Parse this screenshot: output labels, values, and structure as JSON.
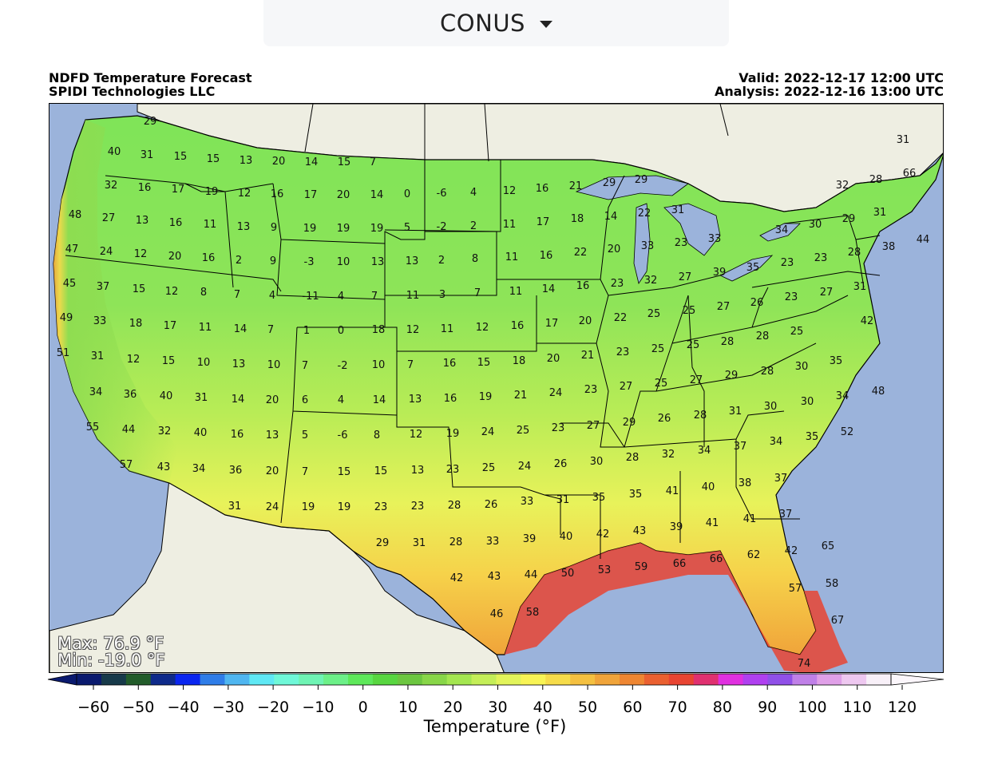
{
  "region_selector": {
    "label": "CONUS",
    "caret_icon": "caret-down-icon"
  },
  "header": {
    "title_line1": "NDFD Temperature Forecast",
    "title_line2": "SPIDI Technologies LLC",
    "valid": "Valid: 2022-12-17 12:00 UTC",
    "analysis": "Analysis: 2022-12-16 13:00 UTC"
  },
  "stats": {
    "max": "Max: 76.9 °F",
    "min": "Min: -19.0 °F"
  },
  "colorbar": {
    "label": "Temperature (°F)",
    "ticks": [
      "−60",
      "−50",
      "−40",
      "−30",
      "−20",
      "−10",
      "0",
      "10",
      "20",
      "30",
      "40",
      "50",
      "60",
      "70",
      "80",
      "90",
      "100",
      "110",
      "120"
    ],
    "colors": [
      "#0a1a6e",
      "#173a4a",
      "#225c2a",
      "#0e2a8a",
      "#0a26f0",
      "#2f7de8",
      "#4fb6f0",
      "#5fe8f4",
      "#6ff8d8",
      "#6ff4b4",
      "#6cf088",
      "#5ee85a",
      "#58d640",
      "#6cc640",
      "#88d648",
      "#a4e650",
      "#c4ee58",
      "#e2f45a",
      "#f8f455",
      "#f6dc4a",
      "#f4c040",
      "#f0a43a",
      "#ee8632",
      "#ea6030",
      "#e84432",
      "#e03070",
      "#e030e0",
      "#b040f0",
      "#9050e8",
      "#c080e8",
      "#e0a0e8",
      "#eec8f0",
      "#f8f0f8"
    ]
  },
  "map_labels": [
    [
      "29",
      187,
      150
    ],
    [
      "40",
      142,
      188
    ],
    [
      "31",
      183,
      192
    ],
    [
      "15",
      225,
      194
    ],
    [
      "15",
      266,
      197
    ],
    [
      "13",
      307,
      199
    ],
    [
      "20",
      348,
      200
    ],
    [
      "14",
      389,
      201
    ],
    [
      "15",
      430,
      201
    ],
    [
      "7",
      466,
      201
    ],
    [
      "32",
      138,
      230
    ],
    [
      "16",
      180,
      233
    ],
    [
      "17",
      222,
      235
    ],
    [
      "19",
      264,
      238
    ],
    [
      "12",
      305,
      240
    ],
    [
      "16",
      346,
      241
    ],
    [
      "17",
      388,
      242
    ],
    [
      "20",
      429,
      242
    ],
    [
      "14",
      471,
      242
    ],
    [
      "0",
      509,
      241
    ],
    [
      "-6",
      552,
      240
    ],
    [
      "4",
      592,
      239
    ],
    [
      "12",
      637,
      237
    ],
    [
      "16",
      678,
      234
    ],
    [
      "21",
      720,
      231
    ],
    [
      "29",
      762,
      227
    ],
    [
      "29",
      802,
      223
    ],
    [
      "48",
      93,
      267
    ],
    [
      "27",
      135,
      271
    ],
    [
      "13",
      177,
      274
    ],
    [
      "16",
      219,
      277
    ],
    [
      "11",
      262,
      279
    ],
    [
      "13",
      304,
      282
    ],
    [
      "9",
      342,
      283
    ],
    [
      "19",
      387,
      284
    ],
    [
      "19",
      429,
      284
    ],
    [
      "19",
      471,
      284
    ],
    [
      "5",
      509,
      283
    ],
    [
      "-2",
      552,
      282
    ],
    [
      "2",
      592,
      281
    ],
    [
      "11",
      637,
      279
    ],
    [
      "17",
      679,
      276
    ],
    [
      "18",
      722,
      272
    ],
    [
      "14",
      764,
      269
    ],
    [
      "22",
      806,
      265
    ],
    [
      "31",
      848,
      261
    ],
    [
      "32",
      1054,
      230
    ],
    [
      "28",
      1096,
      223
    ],
    [
      "66",
      1138,
      215
    ],
    [
      "31",
      1130,
      173
    ],
    [
      "47",
      89,
      310
    ],
    [
      "24",
      132,
      313
    ],
    [
      "12",
      175,
      316
    ],
    [
      "20",
      218,
      319
    ],
    [
      "16",
      260,
      321
    ],
    [
      "2",
      298,
      324
    ],
    [
      "9",
      341,
      325
    ],
    [
      "-3",
      386,
      326
    ],
    [
      "10",
      429,
      326
    ],
    [
      "13",
      472,
      326
    ],
    [
      "13",
      515,
      325
    ],
    [
      "2",
      552,
      324
    ],
    [
      "8",
      594,
      322
    ],
    [
      "11",
      640,
      320
    ],
    [
      "16",
      683,
      318
    ],
    [
      "22",
      726,
      314
    ],
    [
      "20",
      768,
      310
    ],
    [
      "33",
      810,
      306
    ],
    [
      "23",
      852,
      302
    ],
    [
      "33",
      894,
      297
    ],
    [
      "34",
      978,
      286
    ],
    [
      "30",
      1020,
      279
    ],
    [
      "29",
      1062,
      272
    ],
    [
      "31",
      1101,
      264
    ],
    [
      "44",
      1155,
      298
    ],
    [
      "28",
      1069,
      314
    ],
    [
      "38",
      1112,
      307
    ],
    [
      "45",
      86,
      353
    ],
    [
      "37",
      128,
      357
    ],
    [
      "15",
      173,
      360
    ],
    [
      "12",
      214,
      363
    ],
    [
      "8",
      254,
      364
    ],
    [
      "7",
      296,
      367
    ],
    [
      "4",
      340,
      368
    ],
    [
      "-11",
      388,
      369
    ],
    [
      "4",
      426,
      369
    ],
    [
      "7",
      468,
      369
    ],
    [
      "11",
      516,
      368
    ],
    [
      "3",
      553,
      367
    ],
    [
      "7",
      597,
      365
    ],
    [
      "11",
      645,
      363
    ],
    [
      "14",
      686,
      360
    ],
    [
      "16",
      729,
      356
    ],
    [
      "23",
      772,
      353
    ],
    [
      "32",
      814,
      349
    ],
    [
      "27",
      857,
      345
    ],
    [
      "39",
      900,
      339
    ],
    [
      "35",
      942,
      333
    ],
    [
      "23",
      985,
      327
    ],
    [
      "23",
      1027,
      321
    ],
    [
      "49",
      82,
      396
    ],
    [
      "33",
      124,
      400
    ],
    [
      "18",
      169,
      403
    ],
    [
      "17",
      212,
      406
    ],
    [
      "11",
      256,
      408
    ],
    [
      "14",
      300,
      410
    ],
    [
      "7",
      338,
      411
    ],
    [
      "1",
      383,
      412
    ],
    [
      "0",
      426,
      412
    ],
    [
      "18",
      473,
      411
    ],
    [
      "12",
      516,
      411
    ],
    [
      "11",
      559,
      410
    ],
    [
      "12",
      603,
      408
    ],
    [
      "16",
      647,
      406
    ],
    [
      "17",
      690,
      403
    ],
    [
      "20",
      732,
      400
    ],
    [
      "22",
      776,
      396
    ],
    [
      "25",
      818,
      391
    ],
    [
      "25",
      862,
      387
    ],
    [
      "27",
      905,
      382
    ],
    [
      "26",
      947,
      377
    ],
    [
      "23",
      990,
      370
    ],
    [
      "27",
      1034,
      364
    ],
    [
      "31",
      1076,
      357
    ],
    [
      "42",
      1085,
      400
    ],
    [
      "51",
      78,
      440
    ],
    [
      "31",
      121,
      444
    ],
    [
      "12",
      166,
      448
    ],
    [
      "15",
      210,
      450
    ],
    [
      "10",
      254,
      452
    ],
    [
      "13",
      298,
      454
    ],
    [
      "10",
      342,
      455
    ],
    [
      "7",
      381,
      456
    ],
    [
      "-2",
      428,
      456
    ],
    [
      "10",
      473,
      455
    ],
    [
      "7",
      513,
      455
    ],
    [
      "16",
      562,
      453
    ],
    [
      "15",
      605,
      452
    ],
    [
      "18",
      649,
      450
    ],
    [
      "20",
      692,
      447
    ],
    [
      "21",
      735,
      443
    ],
    [
      "23",
      779,
      439
    ],
    [
      "25",
      823,
      435
    ],
    [
      "25",
      867,
      430
    ],
    [
      "28",
      910,
      426
    ],
    [
      "28",
      954,
      419
    ],
    [
      "25",
      997,
      413
    ],
    [
      "34",
      119,
      489
    ],
    [
      "36",
      162,
      492
    ],
    [
      "40",
      207,
      494
    ],
    [
      "31",
      251,
      496
    ],
    [
      "14",
      297,
      498
    ],
    [
      "20",
      340,
      499
    ],
    [
      "6",
      381,
      499
    ],
    [
      "4",
      426,
      499
    ],
    [
      "14",
      474,
      499
    ],
    [
      "13",
      519,
      498
    ],
    [
      "16",
      563,
      497
    ],
    [
      "19",
      607,
      495
    ],
    [
      "21",
      651,
      493
    ],
    [
      "24",
      695,
      490
    ],
    [
      "23",
      739,
      486
    ],
    [
      "27",
      783,
      482
    ],
    [
      "25",
      827,
      478
    ],
    [
      "27",
      871,
      474
    ],
    [
      "29",
      915,
      468
    ],
    [
      "28",
      960,
      463
    ],
    [
      "30",
      1003,
      457
    ],
    [
      "35",
      1046,
      450
    ],
    [
      "48",
      1099,
      488
    ],
    [
      "55",
      115,
      533
    ],
    [
      "44",
      160,
      536
    ],
    [
      "32",
      205,
      538
    ],
    [
      "40",
      250,
      540
    ],
    [
      "16",
      296,
      542
    ],
    [
      "13",
      340,
      543
    ],
    [
      "5",
      381,
      543
    ],
    [
      "-6",
      428,
      543
    ],
    [
      "8",
      471,
      543
    ],
    [
      "12",
      520,
      542
    ],
    [
      "19",
      566,
      541
    ],
    [
      "24",
      610,
      539
    ],
    [
      "25",
      654,
      537
    ],
    [
      "23",
      698,
      534
    ],
    [
      "27",
      742,
      531
    ],
    [
      "29",
      787,
      527
    ],
    [
      "26",
      831,
      522
    ],
    [
      "28",
      876,
      518
    ],
    [
      "31",
      920,
      513
    ],
    [
      "30",
      964,
      507
    ],
    [
      "30",
      1010,
      501
    ],
    [
      "34",
      1054,
      494
    ],
    [
      "52",
      1060,
      539
    ],
    [
      "57",
      157,
      580
    ],
    [
      "43",
      204,
      583
    ],
    [
      "34",
      248,
      585
    ],
    [
      "36",
      294,
      587
    ],
    [
      "20",
      340,
      588
    ],
    [
      "7",
      381,
      589
    ],
    [
      "15",
      430,
      589
    ],
    [
      "15",
      476,
      588
    ],
    [
      "13",
      522,
      587
    ],
    [
      "23",
      566,
      586
    ],
    [
      "25",
      611,
      584
    ],
    [
      "24",
      656,
      582
    ],
    [
      "26",
      701,
      579
    ],
    [
      "30",
      746,
      576
    ],
    [
      "28",
      791,
      571
    ],
    [
      "32",
      836,
      567
    ],
    [
      "34",
      881,
      562
    ],
    [
      "37",
      926,
      557
    ],
    [
      "34",
      971,
      551
    ],
    [
      "35",
      1016,
      545
    ],
    [
      "31",
      293,
      632
    ],
    [
      "24",
      340,
      633
    ],
    [
      "19",
      385,
      633
    ],
    [
      "19",
      430,
      633
    ],
    [
      "23",
      476,
      633
    ],
    [
      "23",
      522,
      632
    ],
    [
      "28",
      568,
      631
    ],
    [
      "26",
      614,
      630
    ],
    [
      "33",
      659,
      626
    ],
    [
      "31",
      704,
      624
    ],
    [
      "35",
      749,
      621
    ],
    [
      "35",
      795,
      617
    ],
    [
      "41",
      841,
      613
    ],
    [
      "40",
      886,
      608
    ],
    [
      "38",
      932,
      603
    ],
    [
      "37",
      977,
      597
    ],
    [
      "29",
      478,
      678
    ],
    [
      "31",
      524,
      678
    ],
    [
      "28",
      570,
      677
    ],
    [
      "33",
      616,
      676
    ],
    [
      "39",
      662,
      673
    ],
    [
      "40",
      708,
      670
    ],
    [
      "42",
      754,
      667
    ],
    [
      "43",
      800,
      663
    ],
    [
      "39",
      846,
      658
    ],
    [
      "41",
      891,
      653
    ],
    [
      "41",
      938,
      648
    ],
    [
      "37",
      983,
      642
    ],
    [
      "42",
      571,
      722
    ],
    [
      "43",
      618,
      720
    ],
    [
      "44",
      664,
      718
    ],
    [
      "50",
      710,
      716
    ],
    [
      "53",
      756,
      712
    ],
    [
      "59",
      802,
      708
    ],
    [
      "66",
      850,
      704
    ],
    [
      "66",
      896,
      698
    ],
    [
      "62",
      943,
      693
    ],
    [
      "42",
      990,
      688
    ],
    [
      "65",
      1036,
      682
    ],
    [
      "46",
      621,
      767
    ],
    [
      "58",
      666,
      765
    ],
    [
      "57",
      995,
      735
    ],
    [
      "58",
      1041,
      729
    ],
    [
      "67",
      1048,
      775
    ],
    [
      "74",
      1006,
      829
    ]
  ]
}
